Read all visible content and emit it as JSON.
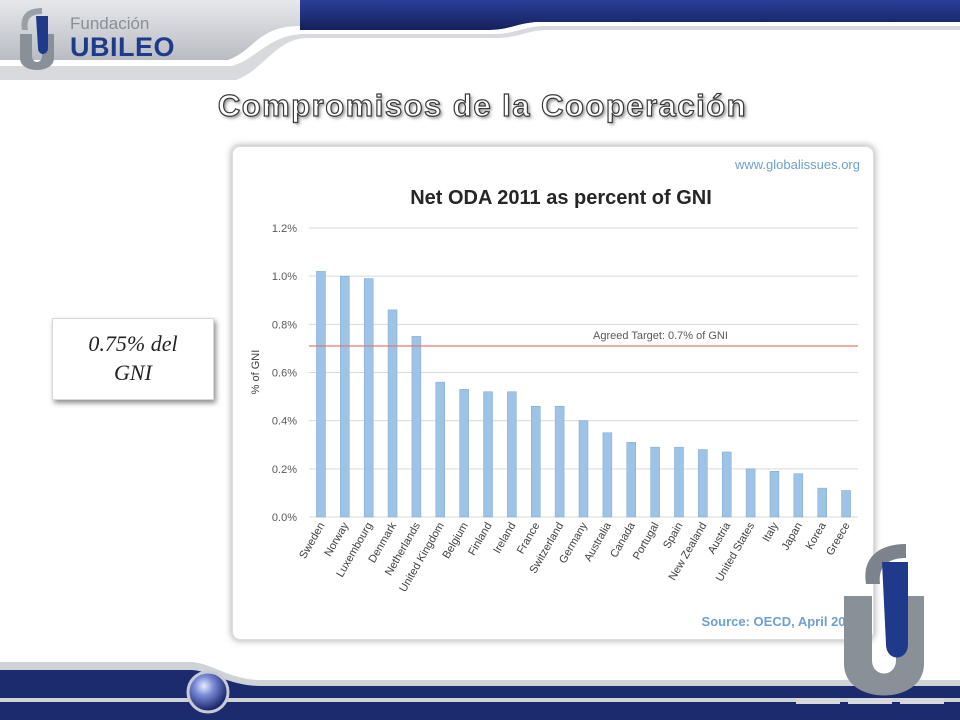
{
  "branding": {
    "logo_small": "Fundación",
    "logo_big": "UBILEO",
    "logo_letter": "J"
  },
  "slide": {
    "title": "Compromisos de la Cooperación",
    "callout": "0.75% del GNI"
  },
  "colors": {
    "bar": "#9dc3e6",
    "bar_edge": "#7fa7cf",
    "target_line": "#e37b78",
    "header_navy": "#1c2a6e",
    "header_grey": "#c9ccd1"
  },
  "chart_data": {
    "type": "bar",
    "title": "Net ODA 2011 as percent of GNI",
    "watermark": "www.globalissues.org",
    "source": "Source: OECD, April 2012",
    "ylabel": "% of GNI",
    "xlabel": "",
    "ylim": [
      0,
      1.2
    ],
    "yticks": [
      0,
      0.2,
      0.4,
      0.6,
      0.8,
      1.0,
      1.2
    ],
    "ytick_labels": [
      "0.0%",
      "0.2%",
      "0.4%",
      "0.6%",
      "0.8%",
      "1.0%",
      "1.2%"
    ],
    "grid": true,
    "categories": [
      "Sweden",
      "Norway",
      "Luxembourg",
      "Denmark",
      "Netherlands",
      "United Kingdom",
      "Belgium",
      "Finland",
      "Ireland",
      "France",
      "Switzerland",
      "Germany",
      "Australia",
      "Canada",
      "Portugal",
      "Spain",
      "New Zealand",
      "Austria",
      "United States",
      "Italy",
      "Japan",
      "Korea",
      "Greece"
    ],
    "values": [
      1.02,
      1.0,
      0.99,
      0.86,
      0.75,
      0.56,
      0.53,
      0.52,
      0.52,
      0.46,
      0.46,
      0.4,
      0.35,
      0.31,
      0.29,
      0.29,
      0.28,
      0.27,
      0.2,
      0.19,
      0.18,
      0.12,
      0.11
    ],
    "reference_line": {
      "value": 0.71,
      "label": "Agreed Target: 0.7% of GNI"
    }
  }
}
